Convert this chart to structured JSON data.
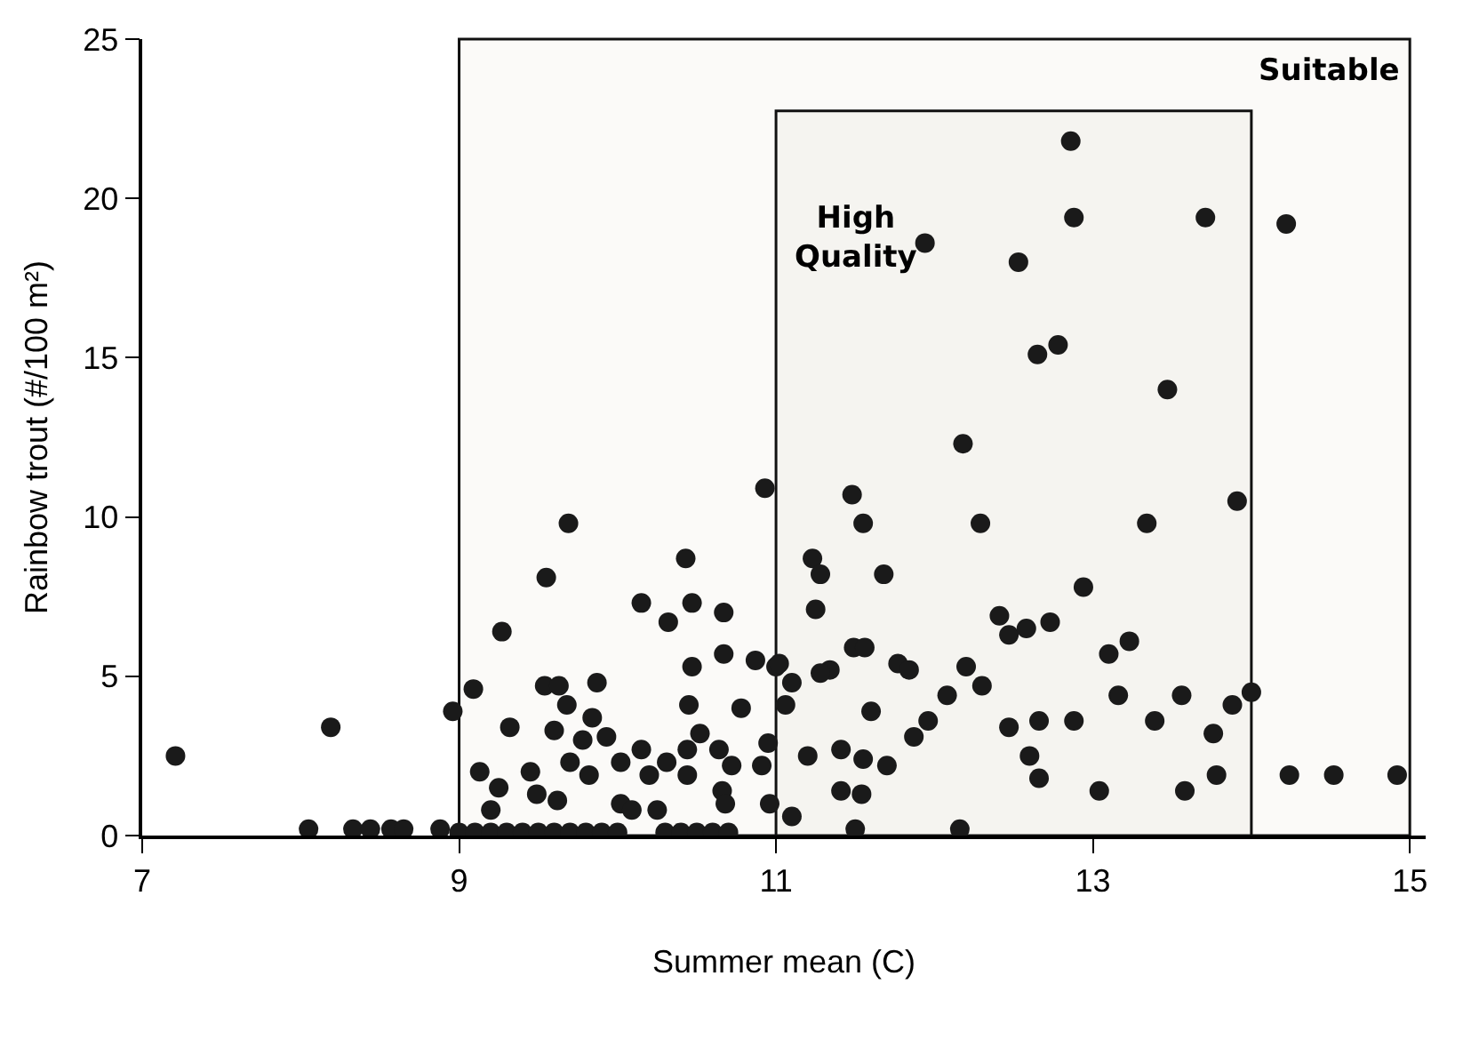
{
  "chart_data": {
    "type": "scatter",
    "xlabel": "Summer mean (C)",
    "ylabel": "Rainbow trout (#/100 m²)",
    "xlim": [
      7,
      15.1
    ],
    "ylim": [
      0,
      25
    ],
    "xticks": [
      7,
      9,
      11,
      13,
      15
    ],
    "yticks": [
      0,
      5,
      10,
      15,
      20,
      25
    ],
    "grid": false,
    "marker": "circle",
    "bands": [
      {
        "axis": "x",
        "from": 9,
        "to": 15,
        "label": "Suitable",
        "color": "#fbfaf8"
      },
      {
        "axis": "x",
        "from": 11,
        "to": 14,
        "label": "High\nQuality",
        "color": "#f5f4f0"
      }
    ],
    "series": [
      {
        "color": "#1a1a1a",
        "x": [
          7.21,
          8.19,
          8.05,
          8.33,
          8.44,
          8.57,
          8.65,
          8.88,
          8.96,
          9.09,
          9.27,
          9.55,
          9.69,
          9.54,
          9.63,
          9.87,
          9.6,
          9.68,
          9.84,
          9.32,
          9.13,
          9.25,
          9.45,
          9.49,
          9.62,
          9.2,
          9.7,
          9.78,
          9.93,
          9.82,
          10.02,
          10.15,
          10.2,
          10.31,
          10.44,
          10.44,
          10.52,
          10.64,
          10.72,
          10.66,
          10.68,
          10.15,
          10.32,
          10.43,
          10.47,
          10.67,
          10.47,
          10.67,
          10.45,
          10.78,
          10.87,
          11.0,
          10.95,
          10.91,
          10.96,
          10.02,
          10.09,
          10.25,
          9.0,
          9.1,
          9.2,
          9.3,
          9.4,
          9.5,
          9.6,
          9.7,
          9.8,
          9.9,
          10.0,
          10.3,
          10.4,
          10.5,
          10.6,
          10.7,
          10.93,
          12.86,
          12.88,
          13.71,
          14.22,
          11.94,
          12.53,
          12.65,
          12.78,
          13.47,
          12.18,
          11.48,
          11.55,
          12.29,
          13.34,
          13.91,
          11.23,
          11.28,
          11.68,
          11.25,
          12.94,
          12.41,
          12.47,
          12.58,
          12.73,
          13.1,
          13.23,
          11.49,
          11.56,
          11.34,
          11.28,
          11.1,
          11.02,
          11.06,
          11.77,
          11.84,
          12.2,
          12.3,
          12.08,
          11.96,
          11.87,
          11.6,
          12.47,
          12.66,
          12.88,
          13.16,
          13.56,
          13.39,
          13.76,
          13.88,
          14.0,
          11.2,
          11.41,
          11.55,
          11.7,
          12.6,
          11.41,
          11.54,
          12.66,
          13.04,
          13.58,
          13.78,
          11.5,
          12.16,
          11.1,
          14.24,
          14.52,
          14.92
        ],
        "values": [
          2.5,
          3.4,
          0.2,
          0.2,
          0.2,
          0.2,
          0.2,
          0.2,
          3.9,
          4.6,
          6.4,
          8.1,
          9.8,
          4.7,
          4.7,
          4.8,
          3.3,
          4.1,
          3.7,
          3.4,
          2.0,
          1.5,
          2.0,
          1.3,
          1.1,
          0.8,
          2.3,
          3.0,
          3.1,
          1.9,
          2.3,
          2.7,
          1.9,
          2.3,
          2.7,
          1.9,
          3.2,
          2.7,
          2.2,
          1.4,
          1.0,
          7.3,
          6.7,
          8.7,
          7.3,
          7.0,
          5.3,
          5.7,
          4.1,
          4.0,
          5.5,
          5.3,
          2.9,
          2.2,
          1.0,
          1.0,
          0.8,
          0.8,
          0.1,
          0.1,
          0.1,
          0.1,
          0.1,
          0.1,
          0.1,
          0.1,
          0.1,
          0.1,
          0.1,
          0.1,
          0.1,
          0.1,
          0.1,
          0.1,
          10.9,
          21.8,
          19.4,
          19.4,
          19.2,
          18.6,
          18.0,
          15.1,
          15.4,
          14.0,
          12.3,
          10.7,
          9.8,
          9.8,
          9.8,
          10.5,
          8.7,
          8.2,
          8.2,
          7.1,
          7.8,
          6.9,
          6.3,
          6.5,
          6.7,
          5.7,
          6.1,
          5.9,
          5.9,
          5.2,
          5.1,
          4.8,
          5.4,
          4.1,
          5.4,
          5.2,
          5.3,
          4.7,
          4.4,
          3.6,
          3.1,
          3.9,
          3.4,
          3.6,
          3.6,
          4.4,
          4.4,
          3.6,
          3.2,
          4.1,
          4.5,
          2.5,
          2.7,
          2.4,
          2.2,
          2.5,
          1.4,
          1.3,
          1.8,
          1.4,
          1.4,
          1.9,
          0.2,
          0.2,
          0.6,
          1.9,
          1.9,
          1.9
        ]
      }
    ]
  }
}
